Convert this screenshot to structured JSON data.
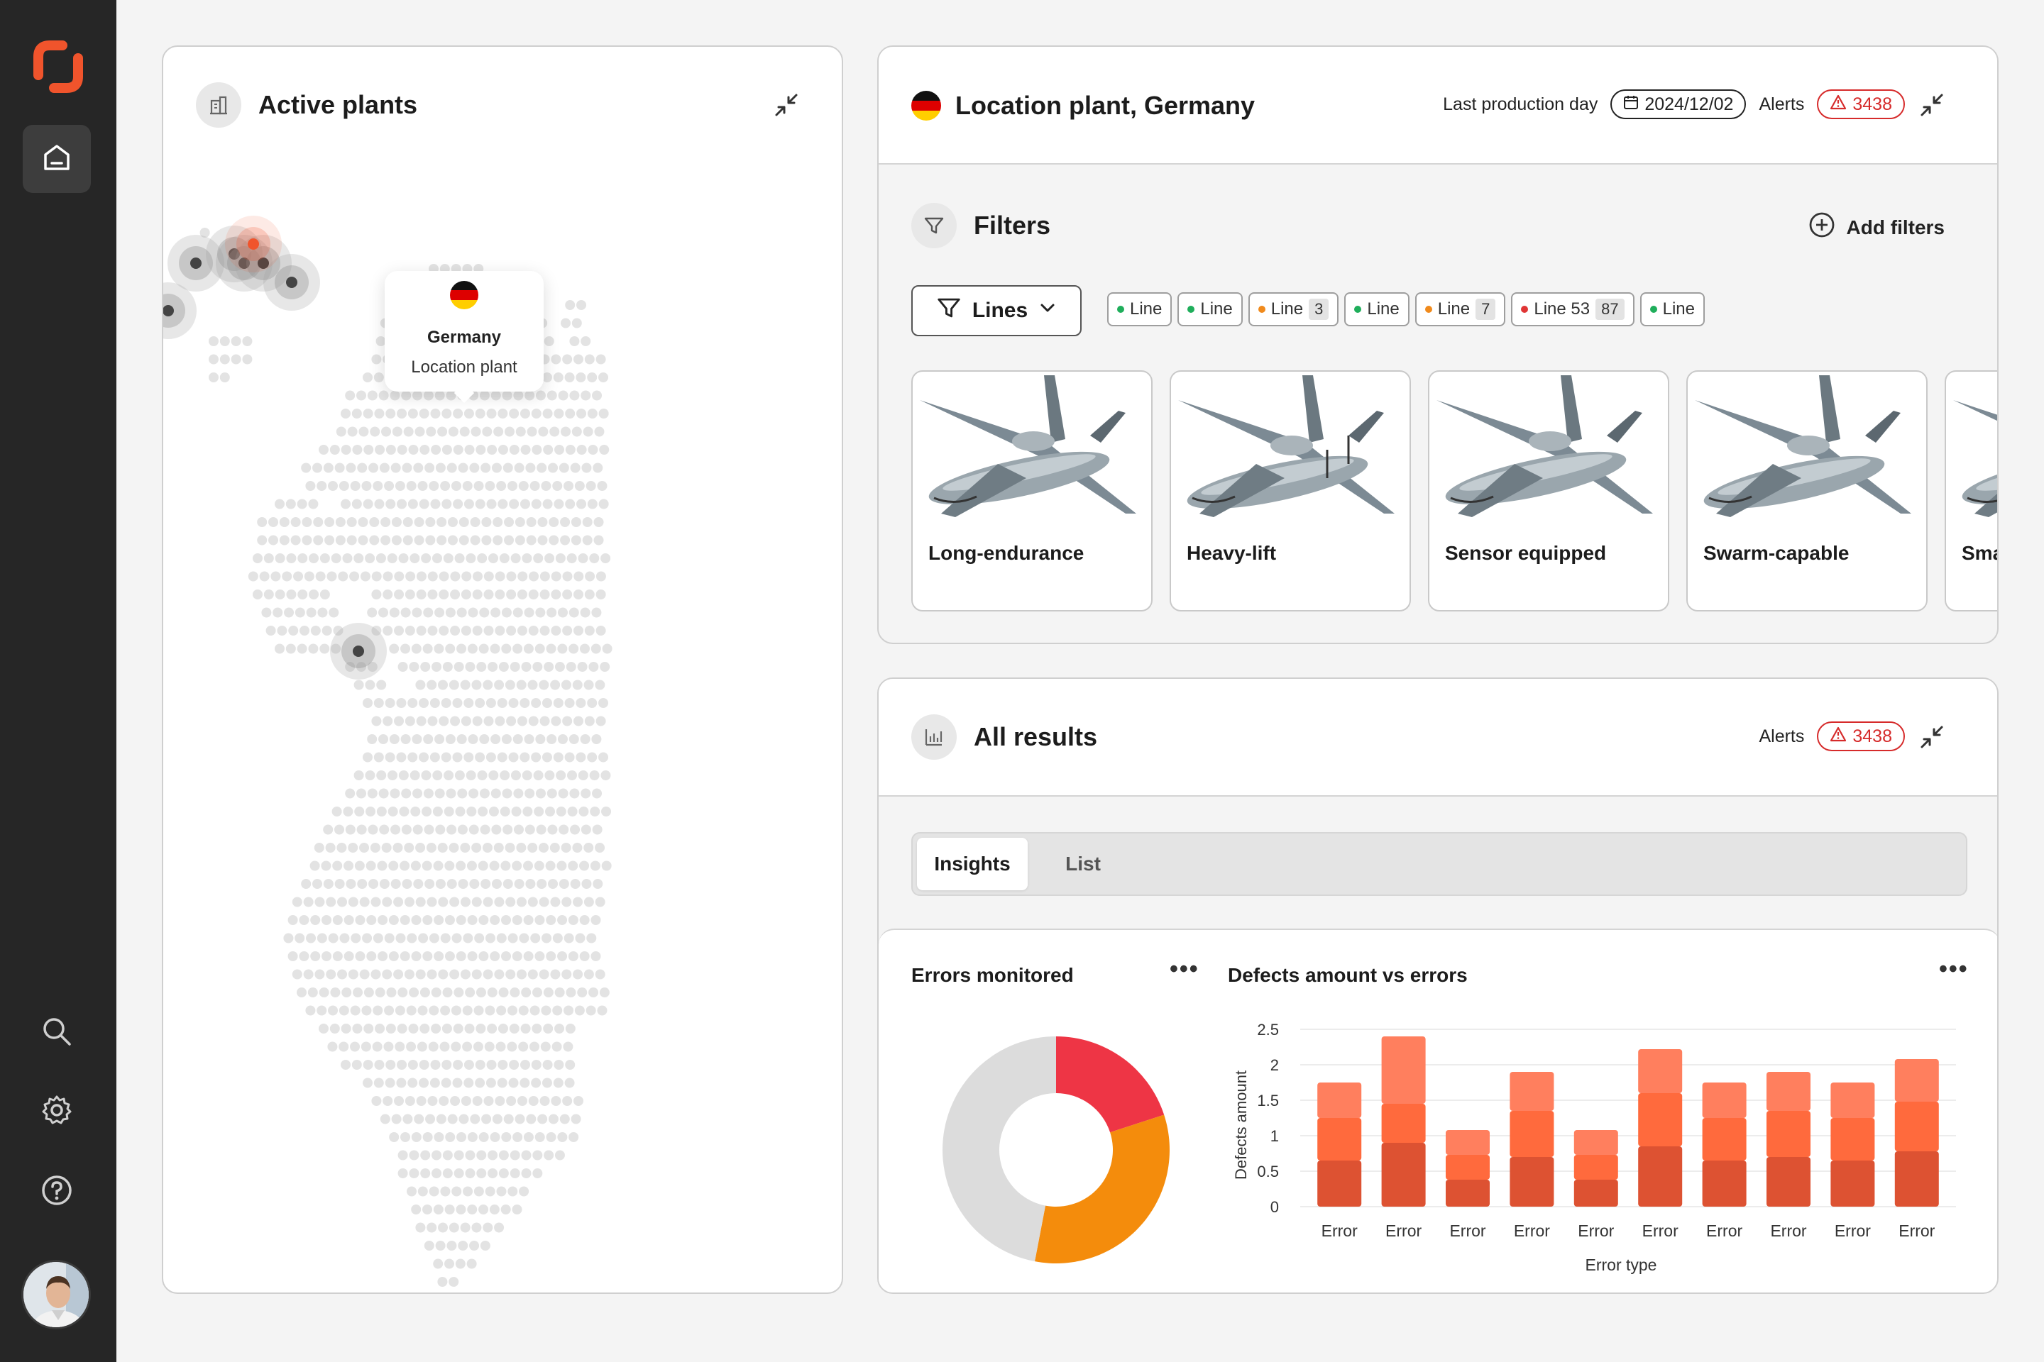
{
  "sidebar": {
    "logo": "brand-logo",
    "nav": [
      {
        "name": "home",
        "icon": "home-icon",
        "active": true
      },
      {
        "name": "search",
        "icon": "search-icon"
      },
      {
        "name": "settings",
        "icon": "gear-icon"
      },
      {
        "name": "help",
        "icon": "help-icon"
      }
    ],
    "avatar": "user-avatar"
  },
  "plants": {
    "title": "Active plants",
    "icon": "building-icon",
    "tooltip": {
      "country": "Germany",
      "subtitle": "Location plant"
    }
  },
  "location": {
    "title": "Location plant, Germany",
    "last_production_label": "Last production day",
    "last_production_date": "2024/12/02",
    "alerts_label": "Alerts",
    "alerts_count": "3438",
    "filters_title": "Filters",
    "add_filters_label": "Add filters",
    "lines_button_label": "Lines",
    "line_tags": [
      {
        "label": "Line",
        "status_color": "#1fae5b",
        "count": ""
      },
      {
        "label": "Line",
        "status_color": "#1fae5b",
        "count": ""
      },
      {
        "label": "Line",
        "status_color": "#f08a1c",
        "count": "3"
      },
      {
        "label": "Line",
        "status_color": "#1fae5b",
        "count": ""
      },
      {
        "label": "Line",
        "status_color": "#f08a1c",
        "count": "7"
      },
      {
        "label": "Line 53",
        "status_color": "#e03535",
        "count": "87"
      },
      {
        "label": "Line",
        "status_color": "#1fae5b",
        "count": ""
      }
    ],
    "products": [
      {
        "name": "Long-endurance"
      },
      {
        "name": "Heavy-lift"
      },
      {
        "name": "Sensor equipped"
      },
      {
        "name": "Swarm-capable"
      },
      {
        "name": "Sma"
      }
    ]
  },
  "results": {
    "title": "All results",
    "icon": "bar-chart-icon",
    "alerts_label": "Alerts",
    "alerts_count": "3438",
    "tabs": [
      {
        "label": "Insights",
        "active": true
      },
      {
        "label": "List",
        "active": false
      }
    ],
    "errors_chart_title": "Errors monitored",
    "defects_chart_title": "Defects amount vs errors",
    "more_label": "•••"
  },
  "colors": {
    "brand": "#f0542c",
    "alert": "#d62b2b"
  },
  "chart_data": [
    {
      "type": "pie",
      "title": "Errors monitored",
      "values": [
        20,
        33,
        47
      ],
      "colors": [
        "#ee3545",
        "#f48c0c",
        "#dcdcdc"
      ]
    },
    {
      "type": "bar",
      "title": "Defects amount vs errors",
      "xlabel": "Error type",
      "ylabel": "Defects amount",
      "ylim": [
        0,
        2.5
      ],
      "yticks": [
        "0",
        "0.5",
        "1",
        "1.5",
        "2",
        "2.5"
      ],
      "categories": [
        "Error",
        "Error",
        "Error",
        "Error",
        "Error",
        "Error",
        "Error",
        "Error",
        "Error",
        "Error"
      ],
      "series": [
        {
          "values": [
            0.65,
            0.9,
            0.38,
            0.7,
            0.38,
            0.85,
            0.65,
            0.7,
            0.65,
            0.78
          ],
          "color": "#dd5232"
        },
        {
          "values": [
            0.6,
            0.55,
            0.35,
            0.65,
            0.35,
            0.75,
            0.6,
            0.65,
            0.6,
            0.7
          ],
          "color": "#ff6a3d"
        },
        {
          "values": [
            0.5,
            0.95,
            0.35,
            0.55,
            0.35,
            0.62,
            0.5,
            0.55,
            0.5,
            0.6
          ],
          "color": "#ff7f5e"
        }
      ]
    }
  ]
}
